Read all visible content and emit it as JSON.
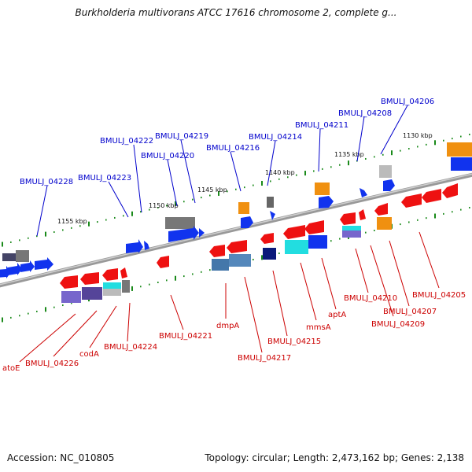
{
  "title": "Burkholderia multivorans ATCC 17616 chromosome 2, complete g...",
  "footer": {
    "accession": "Accession: NC_010805",
    "stats": "Topology: circular; Length: 2,473,162 bp; Genes: 2,138"
  },
  "colors": {
    "forward_label": "#0000cc",
    "reverse_label": "#cc0000",
    "backbone": "#888888",
    "tick": "#1a8a1a",
    "gene_red": "#ee1111",
    "gene_blue": "#1133ee",
    "gene_orange": "#f09010",
    "gene_gray": "#777777",
    "gene_cyan": "#22dde0",
    "gene_purple": "#7766cc",
    "gene_navy": "#0a1a7a",
    "gene_steel": "#4477aa",
    "gene_silver": "#bbbbbb"
  },
  "scale_labels": [
    "1155 kbp",
    "1150 kbp",
    "1145 kbp",
    "1140 kbp",
    "1135 kbp",
    "1130 kbp"
  ],
  "forward_labels": [
    "BMULJ_04228",
    "BMULJ_04223",
    "BMULJ_04222",
    "BMULJ_04220",
    "BMULJ_04219",
    "BMULJ_04216",
    "BMULJ_04214",
    "BMULJ_04211",
    "BMULJ_04208",
    "BMULJ_04206"
  ],
  "reverse_labels": [
    "atoE",
    "BMULJ_04226",
    "codA",
    "BMULJ_04224",
    "BMULJ_04221",
    "dmpA",
    "BMULJ_04217",
    "BMULJ_04215",
    "mmsA",
    "aptA",
    "BMULJ_04210",
    "BMULJ_04209",
    "BMULJ_04207",
    "BMULJ_04205"
  ]
}
